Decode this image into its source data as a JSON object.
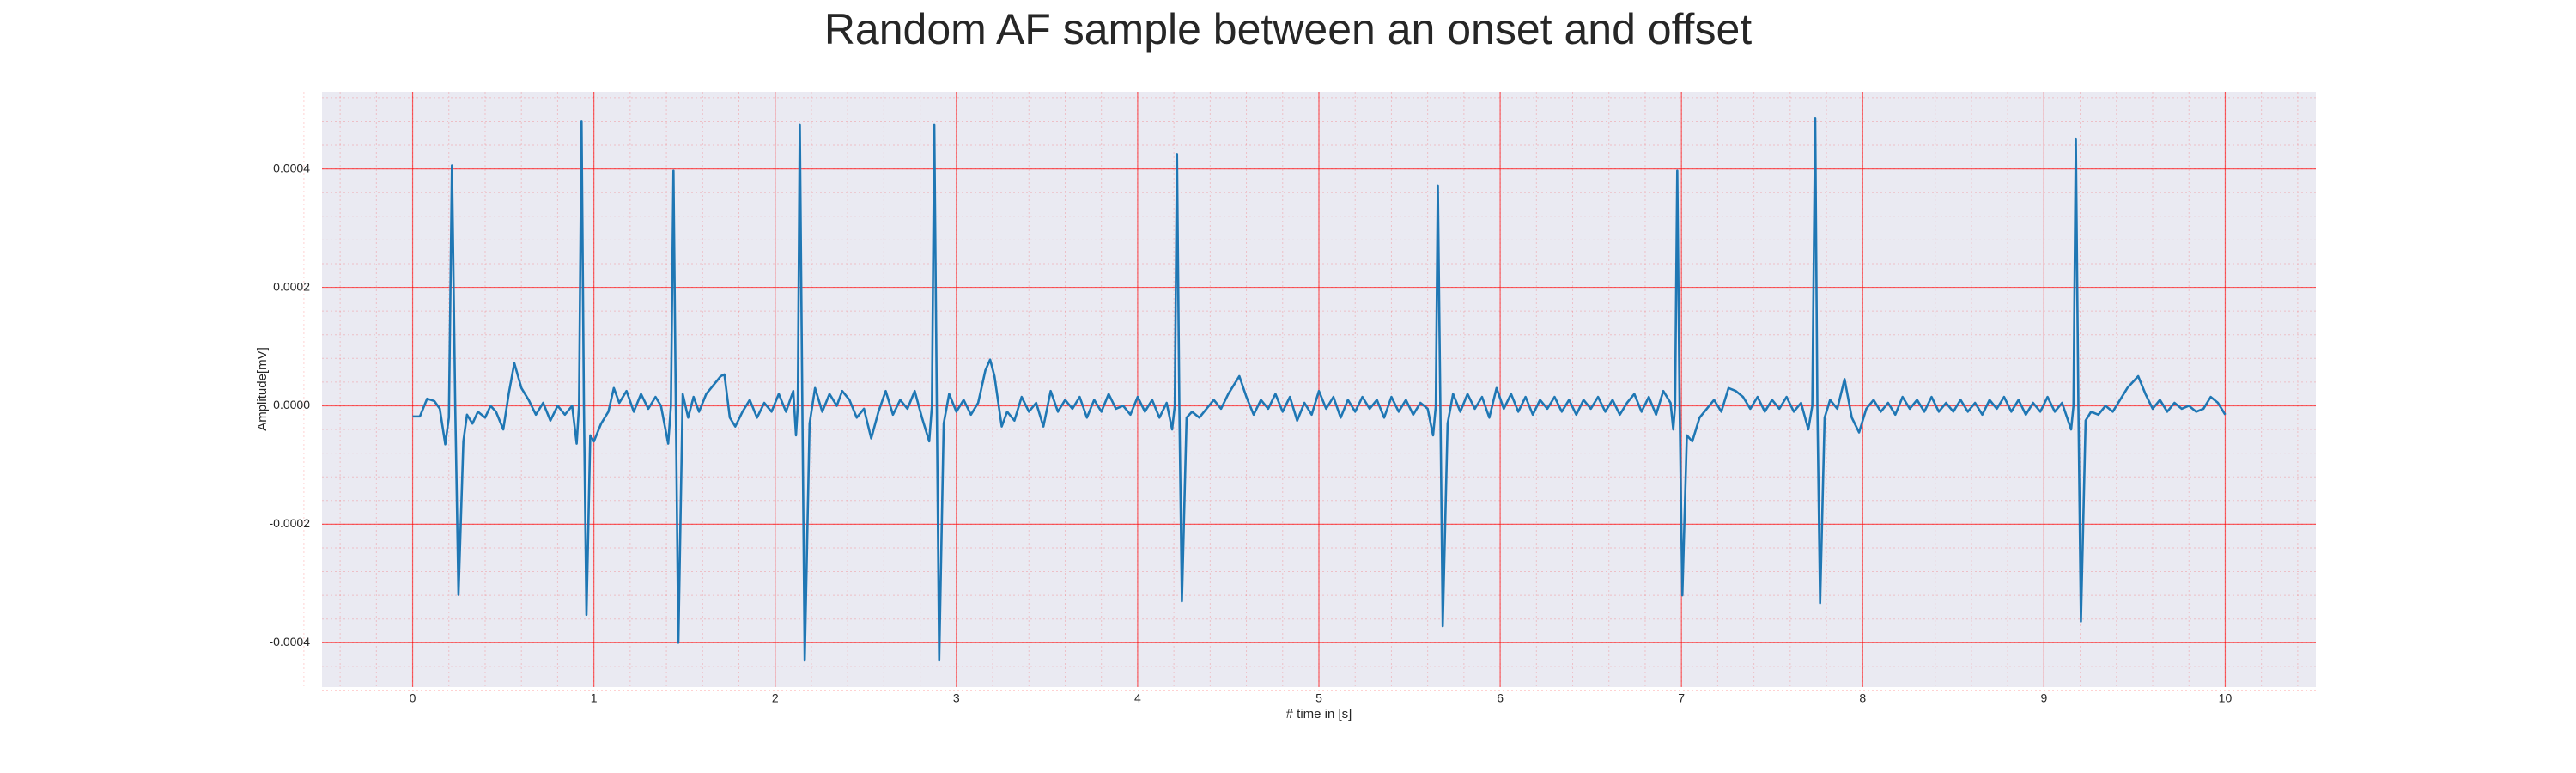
{
  "chart_data": {
    "type": "line",
    "title": "Random AF sample between an onset and offset",
    "xlabel": "# time in [s]",
    "ylabel": "Amplitude[mV]",
    "color": "#1f77b4",
    "background": "#eaeaf2",
    "grid": true,
    "grid_color": "#ff0000",
    "minor_grid": true,
    "minor_divisions": 5,
    "xlim": [
      -0.5,
      10.5
    ],
    "ylim": [
      -0.000475,
      0.00053
    ],
    "xticks": [
      0,
      1,
      2,
      3,
      4,
      5,
      6,
      7,
      8,
      9,
      10
    ],
    "yticks": [
      -0.0004,
      -0.0002,
      {
        "value": 0,
        "label": "0.0000"
      },
      0.0002,
      0.0004
    ],
    "x": [
      0,
      0.04,
      0.08,
      0.12,
      0.15,
      0.18,
      0.2,
      0.217,
      0.235,
      0.253,
      0.28,
      0.3,
      0.33,
      0.36,
      0.4,
      0.43,
      0.46,
      0.5,
      0.53,
      0.561,
      0.6,
      0.64,
      0.68,
      0.72,
      0.76,
      0.8,
      0.84,
      0.88,
      0.905,
      0.918,
      0.932,
      0.945,
      0.959,
      0.98,
      1.0,
      1.04,
      1.08,
      1.11,
      1.14,
      1.18,
      1.22,
      1.26,
      1.3,
      1.34,
      1.37,
      1.41,
      1.425,
      1.439,
      1.452,
      1.466,
      1.49,
      1.52,
      1.55,
      1.58,
      1.62,
      1.66,
      1.7,
      1.72,
      1.75,
      1.78,
      1.82,
      1.86,
      1.9,
      1.94,
      1.98,
      2.02,
      2.06,
      2.1,
      2.115,
      2.125,
      2.136,
      2.15,
      2.163,
      2.19,
      2.22,
      2.26,
      2.3,
      2.34,
      2.37,
      2.41,
      2.45,
      2.49,
      2.53,
      2.57,
      2.61,
      2.65,
      2.69,
      2.73,
      2.77,
      2.81,
      2.85,
      2.865,
      2.878,
      2.892,
      2.905,
      2.93,
      2.96,
      3.0,
      3.04,
      3.08,
      3.12,
      3.16,
      3.186,
      3.21,
      3.25,
      3.28,
      3.32,
      3.36,
      3.4,
      3.44,
      3.48,
      3.52,
      3.56,
      3.6,
      3.64,
      3.68,
      3.72,
      3.76,
      3.8,
      3.84,
      3.88,
      3.92,
      3.96,
      4.0,
      4.04,
      4.08,
      4.12,
      4.16,
      4.19,
      4.205,
      4.217,
      4.23,
      4.244,
      4.27,
      4.3,
      4.34,
      4.38,
      4.42,
      4.46,
      4.5,
      4.561,
      4.6,
      4.64,
      4.68,
      4.72,
      4.76,
      4.8,
      4.84,
      4.88,
      4.92,
      4.96,
      5.0,
      5.04,
      5.08,
      5.12,
      5.16,
      5.2,
      5.24,
      5.28,
      5.32,
      5.36,
      5.4,
      5.44,
      5.48,
      5.52,
      5.56,
      5.6,
      5.63,
      5.645,
      5.656,
      5.67,
      5.683,
      5.71,
      5.74,
      5.78,
      5.82,
      5.86,
      5.9,
      5.94,
      5.98,
      6.02,
      6.06,
      6.1,
      6.14,
      6.18,
      6.22,
      6.26,
      6.3,
      6.34,
      6.38,
      6.42,
      6.46,
      6.5,
      6.54,
      6.58,
      6.62,
      6.66,
      6.7,
      6.74,
      6.78,
      6.82,
      6.86,
      6.9,
      6.94,
      6.955,
      6.965,
      6.977,
      6.99,
      7.005,
      7.03,
      7.06,
      7.1,
      7.14,
      7.18,
      7.22,
      7.26,
      7.3,
      7.34,
      7.38,
      7.42,
      7.46,
      7.5,
      7.54,
      7.58,
      7.62,
      7.66,
      7.7,
      7.722,
      7.738,
      7.75,
      7.765,
      7.79,
      7.82,
      7.86,
      7.9,
      7.94,
      7.98,
      8.02,
      8.06,
      8.1,
      8.14,
      8.18,
      8.22,
      8.26,
      8.3,
      8.34,
      8.38,
      8.42,
      8.46,
      8.5,
      8.54,
      8.58,
      8.62,
      8.66,
      8.7,
      8.74,
      8.78,
      8.82,
      8.86,
      8.9,
      8.94,
      8.98,
      9.02,
      9.06,
      9.1,
      9.15,
      9.163,
      9.176,
      9.19,
      9.204,
      9.23,
      9.26,
      9.3,
      9.34,
      9.38,
      9.42,
      9.46,
      9.52,
      9.56,
      9.6,
      9.64,
      9.68,
      9.72,
      9.76,
      9.8,
      9.84,
      9.88,
      9.92,
      9.96,
      10.0
    ],
    "values": [
      -1.8e-05,
      -1.8e-05,
      1.2e-05,
      8e-06,
      -5e-06,
      -6.5e-05,
      -2e-05,
      0.000406,
      0,
      -0.000319,
      -6e-05,
      -1.5e-05,
      -3e-05,
      -1e-05,
      -2e-05,
      0,
      -1e-05,
      -4e-05,
      2e-05,
      7.2e-05,
      3e-05,
      1e-05,
      -1.5e-05,
      5e-06,
      -2.5e-05,
      0,
      -1.5e-05,
      0,
      -6.4e-05,
      0,
      0.00048,
      0,
      -0.000353,
      -5e-05,
      -6e-05,
      -3e-05,
      -1e-05,
      3e-05,
      5e-06,
      2.5e-05,
      -1e-05,
      2e-05,
      -5e-06,
      1.5e-05,
      0,
      -6.4e-05,
      0,
      0.000397,
      0,
      -0.0004,
      2e-05,
      -2e-05,
      1.5e-05,
      -1e-05,
      2e-05,
      3.5e-05,
      5e-05,
      5.3e-05,
      -2e-05,
      -3.5e-05,
      -1e-05,
      1e-05,
      -2e-05,
      5e-06,
      -1e-05,
      2e-05,
      -1e-05,
      2.5e-05,
      -5e-05,
      0,
      0.000475,
      0,
      -0.00043,
      -3e-05,
      3e-05,
      -1e-05,
      2e-05,
      0,
      2.5e-05,
      1e-05,
      -2e-05,
      -5e-06,
      -5.5e-05,
      -1e-05,
      2.5e-05,
      -1.5e-05,
      1e-05,
      -5e-06,
      2.5e-05,
      -2e-05,
      -6e-05,
      0,
      0.000475,
      0,
      -0.00043,
      -3e-05,
      2e-05,
      -1e-05,
      1e-05,
      -1.5e-05,
      5e-06,
      6e-05,
      7.8e-05,
      5e-05,
      -3.5e-05,
      -1e-05,
      -2.5e-05,
      1.5e-05,
      -1e-05,
      5e-06,
      -3.5e-05,
      2.5e-05,
      -1e-05,
      1e-05,
      -5e-06,
      1.5e-05,
      -2e-05,
      1e-05,
      -1e-05,
      2e-05,
      -5e-06,
      0,
      -1.5e-05,
      1.5e-05,
      -1e-05,
      1e-05,
      -2e-05,
      5e-06,
      -4e-05,
      0,
      0.000425,
      0,
      -0.00033,
      -2e-05,
      -1e-05,
      -2e-05,
      -5e-06,
      1e-05,
      -5e-06,
      2e-05,
      5e-05,
      1.5e-05,
      -1.5e-05,
      1e-05,
      -5e-06,
      2e-05,
      -1e-05,
      1.5e-05,
      -2.5e-05,
      5e-06,
      -1.5e-05,
      2.5e-05,
      -5e-06,
      1.5e-05,
      -2e-05,
      1e-05,
      -1e-05,
      1.5e-05,
      -5e-06,
      1e-05,
      -2e-05,
      1.5e-05,
      -1e-05,
      1e-05,
      -1.5e-05,
      5e-06,
      -5e-06,
      -5e-05,
      0,
      0.000372,
      0,
      -0.000372,
      -3e-05,
      2e-05,
      -1e-05,
      2e-05,
      -5e-06,
      1.5e-05,
      -2e-05,
      3e-05,
      -5e-06,
      2e-05,
      -1e-05,
      1.5e-05,
      -1.5e-05,
      1e-05,
      -5e-06,
      1.5e-05,
      -1e-05,
      1e-05,
      -1.5e-05,
      1e-05,
      -5e-06,
      1.5e-05,
      -1e-05,
      1e-05,
      -1.5e-05,
      5e-06,
      2e-05,
      -1e-05,
      1.5e-05,
      -1.5e-05,
      2.5e-05,
      5e-06,
      -4e-05,
      0,
      0.000397,
      0,
      -0.00032,
      -5e-05,
      -6e-05,
      -2e-05,
      -5e-06,
      1e-05,
      -1e-05,
      3e-05,
      2.5e-05,
      1.5e-05,
      -5e-06,
      1.5e-05,
      -1e-05,
      1e-05,
      -5e-06,
      1.5e-05,
      -1e-05,
      5e-06,
      -4e-05,
      0,
      0.000486,
      0,
      -0.000333,
      -2e-05,
      1e-05,
      -5e-06,
      4.5e-05,
      -2e-05,
      -4.5e-05,
      -5e-06,
      1e-05,
      -1e-05,
      5e-06,
      -1.5e-05,
      1.5e-05,
      -5e-06,
      1e-05,
      -1e-05,
      1.5e-05,
      -1e-05,
      5e-06,
      -1e-05,
      1e-05,
      -1e-05,
      5e-06,
      -1.5e-05,
      1e-05,
      -5e-06,
      1.5e-05,
      -1e-05,
      1e-05,
      -1.5e-05,
      5e-06,
      -1e-05,
      1.5e-05,
      -1e-05,
      5e-06,
      -4e-05,
      0,
      0.00045,
      0,
      -0.000364,
      -2.5e-05,
      -1e-05,
      -1.5e-05,
      0,
      -1e-05,
      1e-05,
      3e-05,
      5e-05,
      2e-05,
      -5e-06,
      1e-05,
      -1e-05,
      5e-06,
      -5e-06,
      0,
      -1e-05,
      -5e-06,
      1.5e-05,
      5e-06,
      -1.5e-05
    ]
  }
}
